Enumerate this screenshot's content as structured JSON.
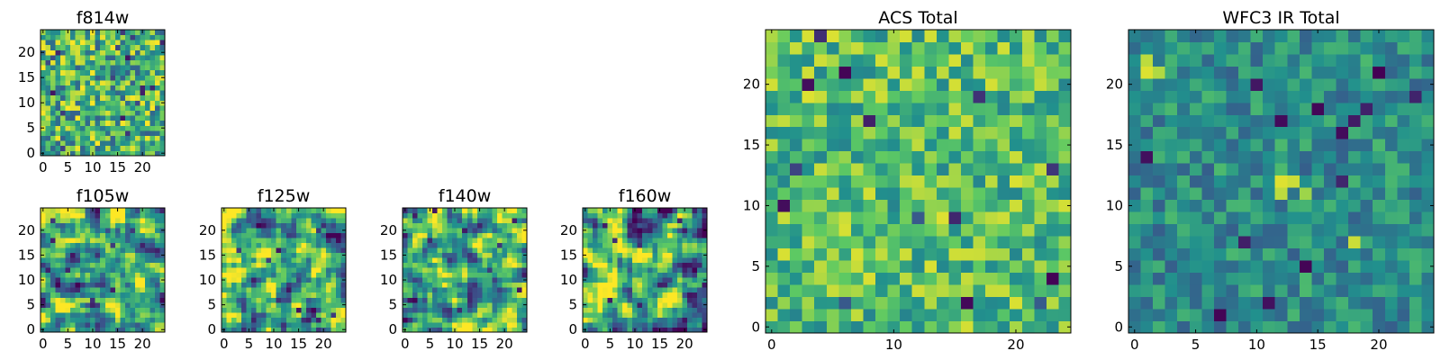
{
  "figure": {
    "colormap": "viridis",
    "colormap_stops": [
      "#440154",
      "#3b528b",
      "#21908d",
      "#5dc963",
      "#fde725"
    ]
  },
  "chart_data": [
    {
      "type": "heatmap",
      "title": "f814w",
      "grid_size": 25,
      "xlim": [
        -0.5,
        24.5
      ],
      "ylim": [
        -0.5,
        24.5
      ],
      "xticks": [
        0,
        5,
        10,
        15,
        20
      ],
      "yticks": [
        0,
        5,
        10,
        15,
        20
      ],
      "pattern": "pixel_noise",
      "seed": 11,
      "vmin": 0,
      "vmax": 1
    },
    {
      "type": "heatmap",
      "title": "f105w",
      "grid_size": 25,
      "xlim": [
        -0.5,
        24.5
      ],
      "ylim": [
        -0.5,
        24.5
      ],
      "xticks": [
        0,
        5,
        10,
        15,
        20
      ],
      "yticks": [
        0,
        5,
        10,
        15,
        20
      ],
      "pattern": "smooth_noise",
      "seed": 23,
      "vmin": 0,
      "vmax": 1
    },
    {
      "type": "heatmap",
      "title": "f125w",
      "grid_size": 25,
      "xlim": [
        -0.5,
        24.5
      ],
      "ylim": [
        -0.5,
        24.5
      ],
      "xticks": [
        0,
        5,
        10,
        15,
        20
      ],
      "yticks": [
        0,
        5,
        10,
        15,
        20
      ],
      "pattern": "smooth_noise",
      "seed": 37,
      "vmin": 0,
      "vmax": 1
    },
    {
      "type": "heatmap",
      "title": "f140w",
      "grid_size": 25,
      "xlim": [
        -0.5,
        24.5
      ],
      "ylim": [
        -0.5,
        24.5
      ],
      "xticks": [
        0,
        5,
        10,
        15,
        20
      ],
      "yticks": [
        0,
        5,
        10,
        15,
        20
      ],
      "pattern": "smooth_noise",
      "seed": 41,
      "vmin": 0,
      "vmax": 1
    },
    {
      "type": "heatmap",
      "title": "f160w",
      "grid_size": 25,
      "xlim": [
        -0.5,
        24.5
      ],
      "ylim": [
        -0.5,
        24.5
      ],
      "xticks": [
        0,
        5,
        10,
        15,
        20
      ],
      "yticks": [
        0,
        5,
        10,
        15,
        20
      ],
      "pattern": "smooth_noise",
      "seed": 53,
      "vmin": 0,
      "vmax": 1
    },
    {
      "type": "heatmap",
      "title": "ACS Total",
      "grid_size": 25,
      "xlim": [
        -0.5,
        24.5
      ],
      "ylim": [
        -0.5,
        24.5
      ],
      "xticks": [
        0,
        10,
        20
      ],
      "yticks": [
        0,
        5,
        10,
        15,
        20
      ],
      "pattern": "blocky_bright",
      "seed": 67,
      "vmin": 0,
      "vmax": 1
    },
    {
      "type": "heatmap",
      "title": "WFC3 IR Total",
      "grid_size": 25,
      "xlim": [
        -0.5,
        24.5
      ],
      "ylim": [
        -0.5,
        24.5
      ],
      "xticks": [
        0,
        5,
        10,
        15,
        20
      ],
      "yticks": [
        0,
        5,
        10,
        15,
        20
      ],
      "pattern": "blocky_dim",
      "seed": 79,
      "vmin": 0,
      "vmax": 1,
      "hotspots": [
        [
          12,
          12,
          0.95
        ],
        [
          13,
          12,
          0.92
        ],
        [
          14,
          11,
          0.85
        ],
        [
          12,
          11,
          0.9
        ],
        [
          1,
          21,
          0.95
        ],
        [
          1,
          22,
          0.9
        ],
        [
          2,
          21,
          0.88
        ],
        [
          18,
          7,
          0.92
        ]
      ]
    }
  ]
}
